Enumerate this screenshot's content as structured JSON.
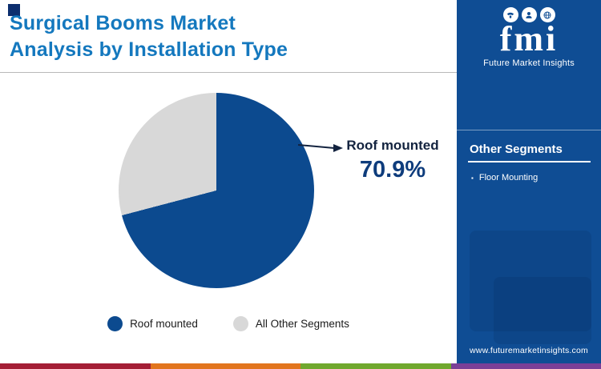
{
  "title": {
    "line1": "Surgical Booms Market",
    "line2": "Analysis by Installation Type"
  },
  "chart_data": {
    "type": "pie",
    "title": "Surgical Booms Market Analysis by Installation Type",
    "labels": [
      "Roof mounted",
      "All Other Segments"
    ],
    "values": [
      70.9,
      29.1
    ],
    "colors": [
      "#0c4a8f",
      "#d8d8d8"
    ],
    "start_angle_deg": 0,
    "direction": "clockwise",
    "annotation": {
      "label": "Roof mounted",
      "value": 70.9,
      "value_text": "70.9%"
    },
    "legend_position": "bottom"
  },
  "sidebar": {
    "background": "#0f4d94",
    "logo": {
      "text": "fmi",
      "tagline": "Future Market Insights",
      "icons": [
        "phone-icon",
        "person-icon",
        "globe-icon"
      ]
    },
    "section": {
      "title": "Other Segments",
      "items": [
        "Floor Mounting"
      ]
    },
    "website": "www.futuremarketinsights.com"
  },
  "footer_stripe": {
    "colors": [
      "#a41e35",
      "#e2751d",
      "#70a82e",
      "#7b3f97"
    ]
  },
  "accent": {
    "title_color": "#1478be",
    "accent_square_color": "#0c2e6e",
    "callout_label_color": "#13233f",
    "callout_value_color": "#0e3c7c"
  }
}
